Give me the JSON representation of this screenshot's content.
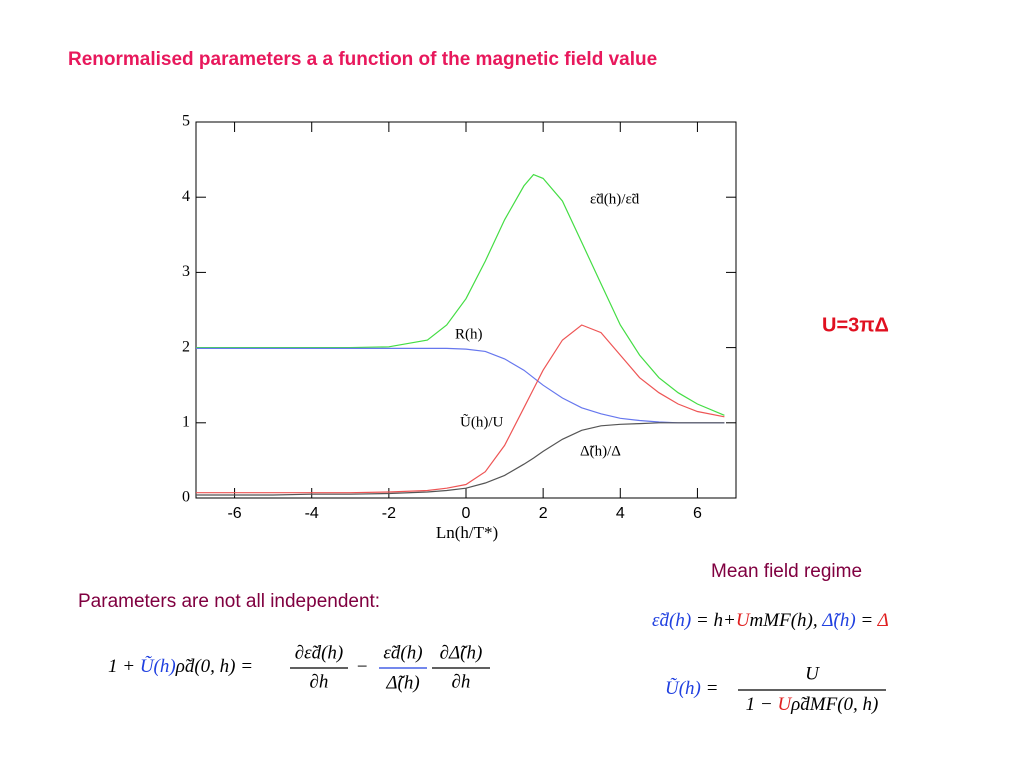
{
  "chart_data": {
    "type": "line",
    "title": "Renormalised parameters a a function of the magnetic field value",
    "x_label": "Ln(h/T*)",
    "x": [
      -7,
      -6,
      -5,
      -4,
      -3,
      -2,
      -1,
      -0.5,
      0,
      0.5,
      1,
      1.5,
      1.75,
      2,
      2.5,
      3,
      3.5,
      4,
      4.5,
      5,
      5.5,
      6,
      6.7
    ],
    "series": [
      {
        "name": "ε̃d(h)/ε̃d",
        "color": "#44dd44",
        "values": [
          2,
          2,
          2,
          2,
          2,
          2.01,
          2.1,
          2.3,
          2.65,
          3.15,
          3.7,
          4.15,
          4.3,
          4.25,
          3.95,
          3.4,
          2.85,
          2.3,
          1.9,
          1.6,
          1.4,
          1.25,
          1.1
        ]
      },
      {
        "name": "R(h)",
        "color": "#6677ee",
        "values": [
          1.99,
          1.99,
          1.99,
          1.99,
          1.99,
          1.99,
          1.99,
          1.99,
          1.98,
          1.95,
          1.85,
          1.7,
          1.6,
          1.5,
          1.33,
          1.2,
          1.12,
          1.06,
          1.03,
          1.01,
          1.0,
          1.0,
          1.0
        ]
      },
      {
        "name": "Ũ(h)/U",
        "color": "#ee5555",
        "values": [
          0.07,
          0.07,
          0.07,
          0.07,
          0.07,
          0.08,
          0.1,
          0.13,
          0.18,
          0.35,
          0.7,
          1.2,
          1.45,
          1.7,
          2.1,
          2.3,
          2.2,
          1.9,
          1.6,
          1.4,
          1.25,
          1.15,
          1.08
        ]
      },
      {
        "name": "Δ̃(h)/Δ",
        "color": "#555555",
        "values": [
          0.04,
          0.04,
          0.04,
          0.05,
          0.05,
          0.06,
          0.08,
          0.1,
          0.13,
          0.2,
          0.3,
          0.45,
          0.53,
          0.62,
          0.78,
          0.9,
          0.96,
          0.98,
          0.99,
          1.0,
          1.0,
          1.0,
          1.0
        ]
      }
    ],
    "xlim": [
      -7,
      7
    ],
    "ylim": [
      0,
      5
    ],
    "xticks": [
      -6,
      -4,
      -2,
      0,
      2,
      4,
      6
    ],
    "yticks": [
      0,
      1,
      2,
      3,
      4,
      5
    ]
  },
  "side_note": "U=3πΔ",
  "mean_field": {
    "heading": "Mean field regime",
    "eq1": {
      "a": "ε̃d(h)",
      "b": " = h+",
      "c": "U",
      "d": "mMF(h), ",
      "e": "Δ̃(h)",
      "f": " = ",
      "g": "Δ"
    },
    "eq2": {
      "lhs": "Ũ(h)",
      "eq": " =",
      "num": "U",
      "den1": "1 − ",
      "den2": "U",
      "den3": "ρ̃dMF(0, h)"
    }
  },
  "constraint": {
    "heading": "Parameters are not all independent:",
    "lhs1": "1 + ",
    "u": "Ũ(h)",
    "lhs2": "ρ̃d(0, h) =",
    "f1n": "∂ε̃d(h)",
    "f1d": "∂h",
    "minus": "−",
    "f2n": "ε̃d(h)",
    "f2d": "Δ̃(h)",
    "f3n": "∂Δ̃(h)",
    "f3d": "∂h"
  }
}
